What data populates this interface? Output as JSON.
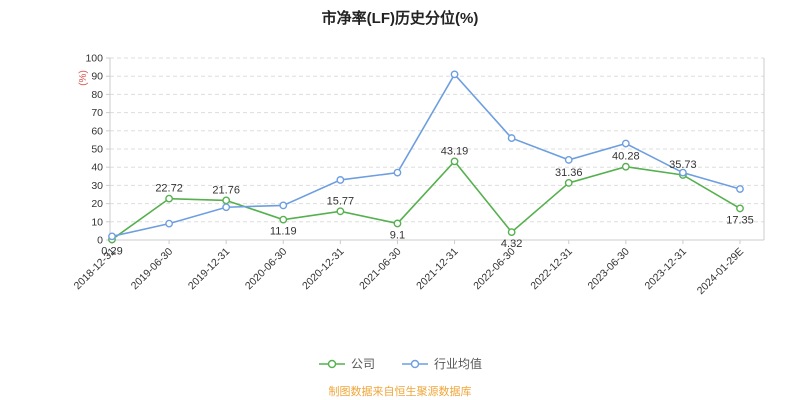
{
  "chart_data": {
    "type": "line",
    "title": "市净率(LF)历史分位(%)",
    "ylabel": "(%)",
    "ylabel_color": "#d9534f",
    "ylim": [
      0,
      100
    ],
    "y_ticks": [
      0,
      10,
      20,
      30,
      40,
      50,
      60,
      70,
      80,
      90,
      100
    ],
    "grid": "dashed-horizontal",
    "legend_position": "bottom",
    "categories": [
      "2018-12-31",
      "2019-06-30",
      "2019-12-31",
      "2020-06-30",
      "2020-12-31",
      "2021-06-30",
      "2021-12-31",
      "2022-06-30",
      "2022-12-31",
      "2023-06-30",
      "2023-12-31",
      "2024-01-29E"
    ],
    "series": [
      {
        "name": "公司",
        "color": "#55b04e",
        "show_labels": true,
        "values": [
          0.29,
          22.72,
          21.76,
          11.19,
          15.77,
          9.1,
          43.19,
          4.32,
          31.36,
          40.28,
          35.73,
          17.35
        ],
        "label_placement": [
          "below",
          "above",
          "above",
          "below",
          "above",
          "below",
          "above",
          "below",
          "above",
          "above",
          "above",
          "below"
        ]
      },
      {
        "name": "行业均值",
        "color": "#6d9ee0",
        "show_labels": false,
        "values": [
          2,
          9,
          18,
          19,
          33,
          37,
          91,
          56,
          44,
          53,
          37,
          28
        ]
      }
    ]
  },
  "footer": {
    "text": "制图数据来自恒生聚源数据库",
    "color": "#f0a63a"
  }
}
